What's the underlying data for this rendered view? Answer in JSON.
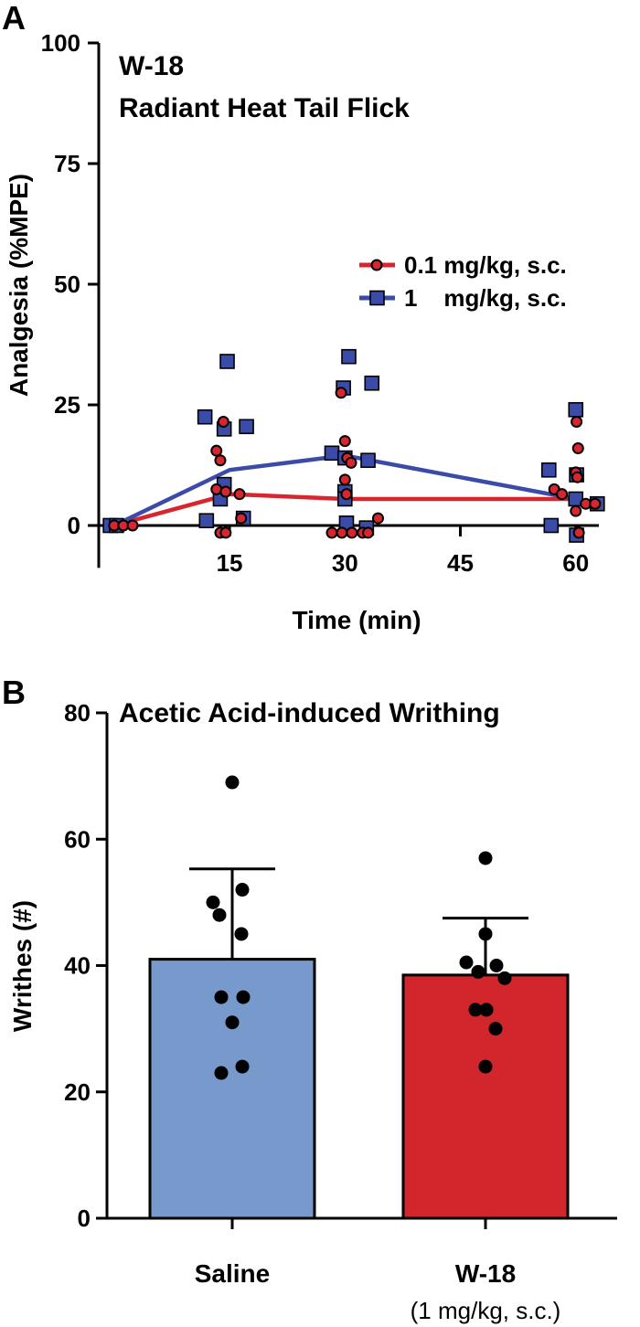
{
  "chart_data": [
    {
      "panel_label": "A",
      "type": "line",
      "title": "W-18",
      "subtitle": "Radiant Heat Tail Flick",
      "xlabel": "Time (min)",
      "ylabel": "Analgesia (%MPE)",
      "xlim": [
        -2,
        63
      ],
      "ylim": [
        0,
        100
      ],
      "xticks": [
        15,
        30,
        45,
        60
      ],
      "yticks": [
        0,
        25,
        50,
        75,
        100
      ],
      "legend_position": "right",
      "series": [
        {
          "name": "0.1 mg/kg, s.c.",
          "color": "#d7262e",
          "marker": "circle",
          "x": [
            0,
            15,
            30,
            60
          ],
          "y": [
            0,
            6.5,
            5.5,
            5.5
          ],
          "points": [
            [
              0,
              0
            ],
            [
              1.2,
              0
            ],
            [
              2.4,
              0
            ],
            [
              13.3,
              15.5
            ],
            [
              14.2,
              21.5
            ],
            [
              13.8,
              13.5
            ],
            [
              13.3,
              7.5
            ],
            [
              14.5,
              7
            ],
            [
              16.3,
              6.5
            ],
            [
              16.5,
              1.5
            ],
            [
              13.8,
              -1.5
            ],
            [
              14.5,
              -1.5
            ],
            [
              29.5,
              27.5
            ],
            [
              30.0,
              17.5
            ],
            [
              30.3,
              14
            ],
            [
              30.8,
              13
            ],
            [
              30.0,
              9.5
            ],
            [
              30.2,
              6.5
            ],
            [
              34.3,
              1.5
            ],
            [
              28.3,
              -1.5
            ],
            [
              29.6,
              -1.5
            ],
            [
              30.9,
              -1.5
            ],
            [
              32.3,
              -1.5
            ],
            [
              33.0,
              -1.5
            ],
            [
              60.1,
              21.5
            ],
            [
              60.3,
              16
            ],
            [
              60.0,
              11
            ],
            [
              60.2,
              10
            ],
            [
              57.2,
              7.5
            ],
            [
              58.2,
              6.5
            ],
            [
              60.0,
              3
            ],
            [
              61.3,
              4.5
            ],
            [
              62.5,
              4.5
            ],
            [
              60.4,
              -1.5
            ]
          ]
        },
        {
          "name": "1    mg/kg, s.c.",
          "color": "#3a4ba8",
          "marker": "square",
          "x": [
            0,
            15,
            30,
            60
          ],
          "y": [
            0,
            11.5,
            14.5,
            5.5
          ],
          "points": [
            [
              -0.5,
              0
            ],
            [
              0.3,
              0
            ],
            [
              11.8,
              22.5
            ],
            [
              14.7,
              34
            ],
            [
              14.3,
              20
            ],
            [
              17.2,
              20.5
            ],
            [
              14.3,
              8.5
            ],
            [
              13.8,
              5.5
            ],
            [
              16.8,
              1.5
            ],
            [
              12.0,
              1
            ],
            [
              30.5,
              35
            ],
            [
              29.8,
              28.5
            ],
            [
              33.5,
              29.5
            ],
            [
              28.3,
              15
            ],
            [
              30.0,
              14
            ],
            [
              33.0,
              13.5
            ],
            [
              30.0,
              7
            ],
            [
              30.0,
              5.5
            ],
            [
              30.2,
              0.5
            ],
            [
              32.8,
              -0.5
            ],
            [
              56.5,
              11.5
            ],
            [
              60.0,
              24
            ],
            [
              60.1,
              10.5
            ],
            [
              60.0,
              5.5
            ],
            [
              62.8,
              4.5
            ],
            [
              56.8,
              0
            ],
            [
              60.1,
              -2
            ]
          ]
        }
      ]
    },
    {
      "panel_label": "B",
      "type": "bar",
      "title": "Acetic Acid-induced Writhing",
      "xlabel": "",
      "ylabel": "Writhes (#)",
      "ylim": [
        0,
        80
      ],
      "yticks": [
        0,
        20,
        40,
        60,
        80
      ],
      "categories": [
        "Saline",
        "W-18"
      ],
      "category_sublabels": [
        "",
        "(1 mg/kg, s.c.)"
      ],
      "values": [
        41,
        38.5
      ],
      "error_upper": [
        55.3,
        47.5
      ],
      "colors": [
        "#7799cc",
        "#d0262c"
      ],
      "points": [
        [
          69,
          50,
          52,
          48,
          45,
          35,
          35,
          31,
          24,
          23
        ],
        [
          57,
          45,
          40.5,
          40,
          39,
          38,
          33,
          33,
          30,
          24
        ]
      ]
    }
  ]
}
